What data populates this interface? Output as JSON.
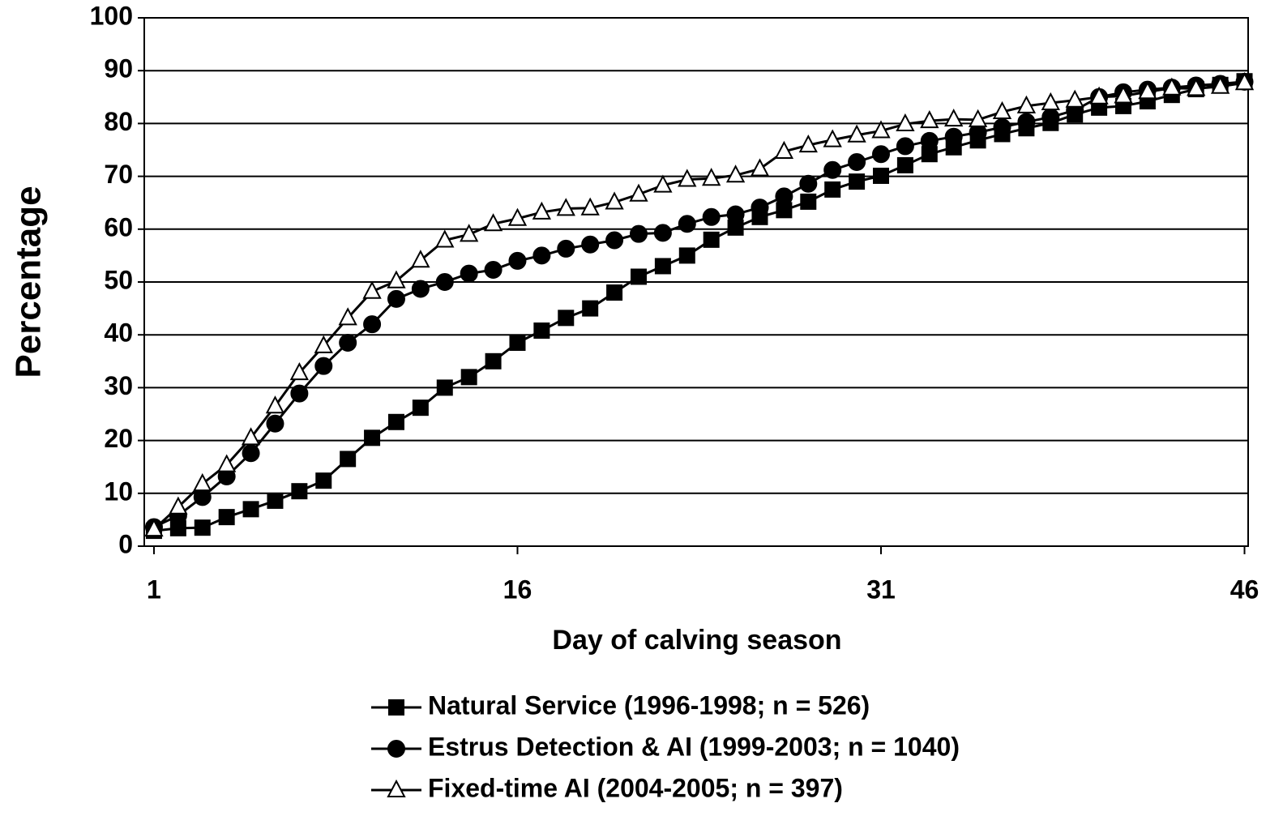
{
  "chart_data": {
    "type": "line",
    "x_label": "Day of calving season",
    "y_label": "Percentage",
    "x": [
      1,
      2,
      3,
      4,
      5,
      6,
      7,
      8,
      9,
      10,
      11,
      12,
      13,
      14,
      15,
      16,
      17,
      18,
      19,
      20,
      21,
      22,
      23,
      24,
      25,
      26,
      27,
      28,
      29,
      30,
      31,
      32,
      33,
      34,
      35,
      36,
      37,
      38,
      39,
      40,
      41,
      42,
      43,
      44,
      45,
      46
    ],
    "xlim": [
      0.6,
      46.15
    ],
    "xticks": [
      1,
      16,
      31,
      46
    ],
    "ylim": [
      0,
      100
    ],
    "yticks": [
      0,
      10,
      20,
      30,
      40,
      50,
      60,
      70,
      80,
      90,
      100
    ],
    "grid": true,
    "legend": "bottom",
    "series": [
      {
        "name": "Natural Service (1996-1998; n = 526)",
        "color": "#000000",
        "marker": "square",
        "marker_fill": "#000000",
        "values": [
          2.9,
          3.4,
          3.5,
          5.5,
          7,
          8.6,
          10.4,
          12.4,
          16.5,
          20.5,
          23.5,
          26.2,
          30,
          32,
          35,
          38.5,
          40.8,
          43.2,
          45,
          48,
          51,
          53,
          55,
          58,
          60.3,
          62.3,
          63.6,
          65.2,
          67.5,
          69,
          70.1,
          72.1,
          74.2,
          75.5,
          76.8,
          78,
          79.1,
          80.1,
          81.7,
          83,
          83.3,
          84.2,
          85.4,
          86.5,
          87.3,
          88
        ]
      },
      {
        "name": "Estrus Detection & AI (1999-2003; n = 1040)",
        "color": "#000000",
        "marker": "circle",
        "marker_fill": "#000000",
        "values": [
          3.6,
          5.8,
          9.3,
          13.2,
          17.6,
          23.2,
          28.9,
          34.1,
          38.5,
          42,
          46.8,
          48.7,
          50,
          51.6,
          52.3,
          54,
          55,
          56.3,
          57.1,
          57.9,
          59.1,
          59.3,
          61,
          62.3,
          62.8,
          64.1,
          66.2,
          68.6,
          71.2,
          72.7,
          74.2,
          75.7,
          76.7,
          77.5,
          78.3,
          79.3,
          80.3,
          81.2,
          82.5,
          85,
          85.9,
          86.4,
          86.8,
          87.2,
          87.5,
          87.9
        ]
      },
      {
        "name": "Fixed-time AI (2004-2005; n = 397)",
        "color": "#000000",
        "marker": "triangle",
        "marker_fill": "#ffffff",
        "values": [
          3.2,
          7.4,
          11.8,
          15.4,
          20.5,
          26.5,
          32.8,
          37.9,
          43.2,
          48.2,
          50.2,
          54.1,
          57.9,
          59,
          61,
          62,
          63.2,
          63.9,
          64,
          65.1,
          66.6,
          68.3,
          69.4,
          69.6,
          70.2,
          71.4,
          74.7,
          75.9,
          76.9,
          77.8,
          78.6,
          79.9,
          80.5,
          80.8,
          80.7,
          82.2,
          83.3,
          83.9,
          84.4,
          85,
          85.2,
          86,
          86.7,
          86.6,
          87,
          87.7
        ]
      }
    ]
  }
}
